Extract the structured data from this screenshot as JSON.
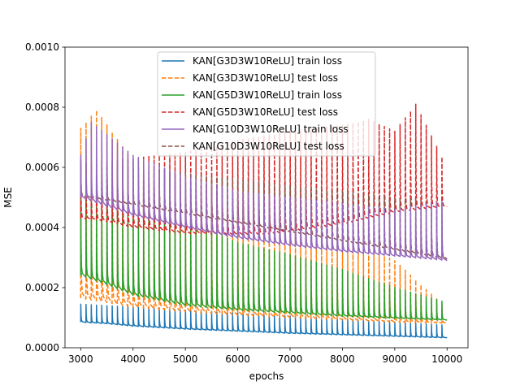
{
  "chart_data": {
    "type": "line",
    "xlabel": "epochs",
    "ylabel": "MSE",
    "xlim": [
      2700,
      10400
    ],
    "ylim": [
      0,
      0.001
    ],
    "x_ticks": [
      3000,
      4000,
      5000,
      6000,
      7000,
      8000,
      9000,
      10000
    ],
    "x_tick_labels": [
      "3000",
      "4000",
      "5000",
      "6000",
      "7000",
      "8000",
      "9000",
      "10000"
    ],
    "y_ticks": [
      0,
      0.0002,
      0.0004,
      0.0006,
      0.0008,
      0.001
    ],
    "y_tick_labels": [
      "0.0000",
      "0.0002",
      "0.0004",
      "0.0006",
      "0.0008",
      "0.0010"
    ],
    "grid": false,
    "legend_position": "top-center",
    "x_range": [
      3000,
      10000
    ],
    "spike_period_epochs": 100,
    "series": [
      {
        "name": "KAN[G3D3W10ReLU] train loss",
        "color": "#1f77b4",
        "dash": "solid",
        "baseline": {
          "x": [
            3000,
            3500,
            4000,
            5000,
            6000,
            7000,
            8000,
            9000,
            10000
          ],
          "y": [
            8.5e-05,
            8e-05,
            7.2e-05,
            6.2e-05,
            5.5e-05,
            4.8e-05,
            4.3e-05,
            3.8e-05,
            3.3e-05
          ]
        },
        "spike_peak": {
          "x": [
            3000,
            4000,
            6000,
            8000,
            10000
          ],
          "y": [
            0.000145,
            0.000135,
            0.000115,
            9.5e-05,
            7.5e-05
          ]
        }
      },
      {
        "name": "KAN[G3D3W10ReLU] test loss",
        "color": "#ff7f0e",
        "dash": "dashed",
        "baseline": {
          "x": [
            3000,
            3500,
            4000,
            5000,
            6000,
            7000,
            8000,
            9000,
            10000
          ],
          "y": [
            0.000165,
            0.00015,
            0.000135,
            0.00012,
            0.000108,
            0.0001,
            9.2e-05,
            8.5e-05,
            8.2e-05
          ]
        },
        "spike_peak": {
          "x": [
            3000,
            3300,
            4000,
            5000,
            6000,
            7000,
            8000,
            9000,
            10000
          ],
          "y": [
            0.00073,
            0.00079,
            0.00062,
            0.00057,
            0.00047,
            0.0004,
            0.00037,
            0.00029,
            0.00013
          ]
        }
      },
      {
        "name": "KAN[G5D3W10ReLU] train loss",
        "color": "#2ca02c",
        "dash": "solid",
        "baseline": {
          "x": [
            3000,
            3500,
            4000,
            5000,
            6000,
            7000,
            8000,
            9000,
            10000
          ],
          "y": [
            0.00024,
            0.00021,
            0.000175,
            0.00014,
            0.000125,
            0.000115,
            0.000105,
            9.8e-05,
            9.2e-05
          ]
        },
        "spike_peak": {
          "x": [
            3000,
            4000,
            5000,
            6000,
            7000,
            8000,
            9000,
            10000
          ],
          "y": [
            0.0005,
            0.00045,
            0.00042,
            0.00035,
            0.00031,
            0.00026,
            0.0002,
            0.00015
          ]
        }
      },
      {
        "name": "KAN[G5D3W10ReLU] test loss",
        "color": "#d62728",
        "dash": "dashed",
        "baseline": {
          "x": [
            3000,
            3500,
            4000,
            5000,
            6000,
            6500,
            7000,
            8000,
            9000,
            10000
          ],
          "y": [
            0.00043,
            0.00042,
            0.0004,
            0.00038,
            0.000375,
            0.000377,
            0.000385,
            0.00041,
            0.00045,
            0.00047
          ]
        },
        "spike_peak": {
          "x": [
            3000,
            4000,
            5000,
            6000,
            7000,
            8000,
            8500,
            9000,
            9400,
            10000
          ],
          "y": [
            0.00061,
            0.00063,
            0.00065,
            0.00069,
            0.00072,
            0.00074,
            0.00076,
            0.00072,
            0.00081,
            0.0006
          ]
        }
      },
      {
        "name": "KAN[G10D3W10ReLU] train loss",
        "color": "#9467bd",
        "dash": "solid",
        "baseline": {
          "x": [
            3000,
            3500,
            4000,
            5000,
            6000,
            7000,
            8000,
            9000,
            10000
          ],
          "y": [
            0.0005,
            0.00047,
            0.00044,
            0.0004,
            0.000365,
            0.00034,
            0.00032,
            0.000305,
            0.00029
          ]
        },
        "spike_peak": {
          "x": [
            3000,
            3200,
            4000,
            5000,
            6000,
            7000,
            8000,
            9000,
            10000
          ],
          "y": [
            0.00064,
            0.00075,
            0.00064,
            0.00057,
            0.00052,
            0.0005,
            0.00048,
            0.00046,
            0.00049
          ]
        }
      },
      {
        "name": "KAN[G10D3W10ReLU] test loss",
        "color": "#8c564b",
        "dash": "dashed",
        "baseline": {
          "x": [
            3000,
            10000
          ],
          "y": [
            0.000505,
            0.000295
          ]
        },
        "spike_peak": {
          "x": [
            3000,
            10000
          ],
          "y": [
            0.00062,
            0.00048
          ]
        }
      }
    ]
  }
}
